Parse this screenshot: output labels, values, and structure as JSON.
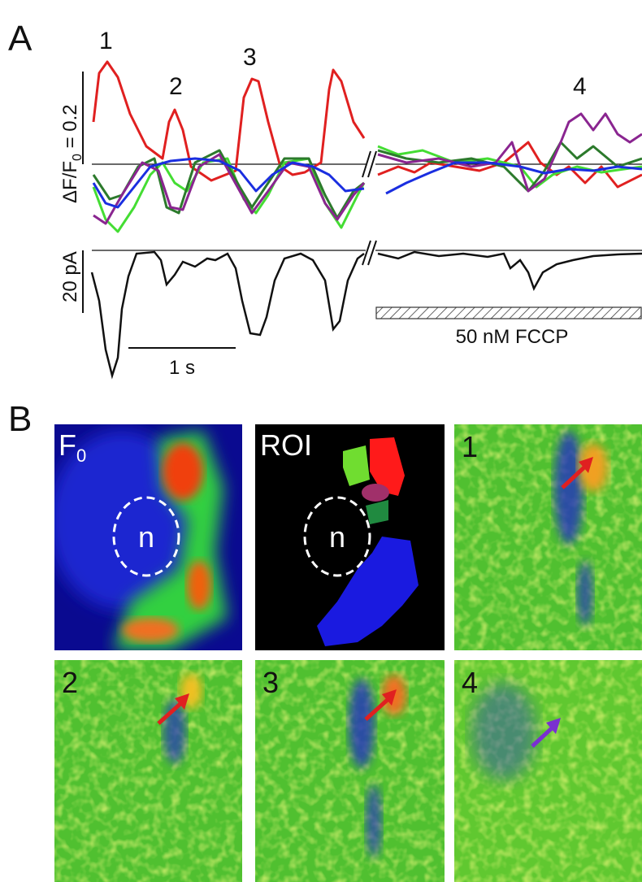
{
  "panel_a": {
    "label": "A",
    "peak_labels": [
      "1",
      "2",
      "3",
      "4"
    ],
    "scale_fluorescence": {
      "prefix": "ΔF/F",
      "subscript": "0",
      "suffix": " = 0.2"
    },
    "scale_current": "20 pA",
    "scale_time": "1 s",
    "drug": "50 nM FCCP"
  },
  "panel_b": {
    "label": "B",
    "images": [
      {
        "label": "F",
        "subscript": "0",
        "nucleus": "n"
      },
      {
        "label": "ROI",
        "nucleus": "n"
      },
      {
        "label": "1"
      },
      {
        "label": "2"
      },
      {
        "label": "3"
      },
      {
        "label": "4"
      }
    ]
  }
}
